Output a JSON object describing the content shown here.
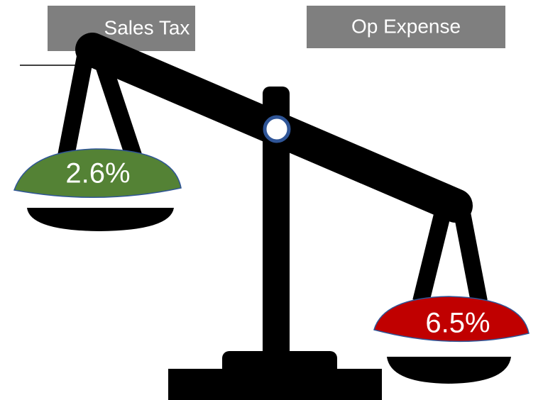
{
  "left": {
    "label": "Sales Tax",
    "value": "2.6%"
  },
  "right": {
    "label": "Op Expense",
    "value": "6.5%"
  }
}
